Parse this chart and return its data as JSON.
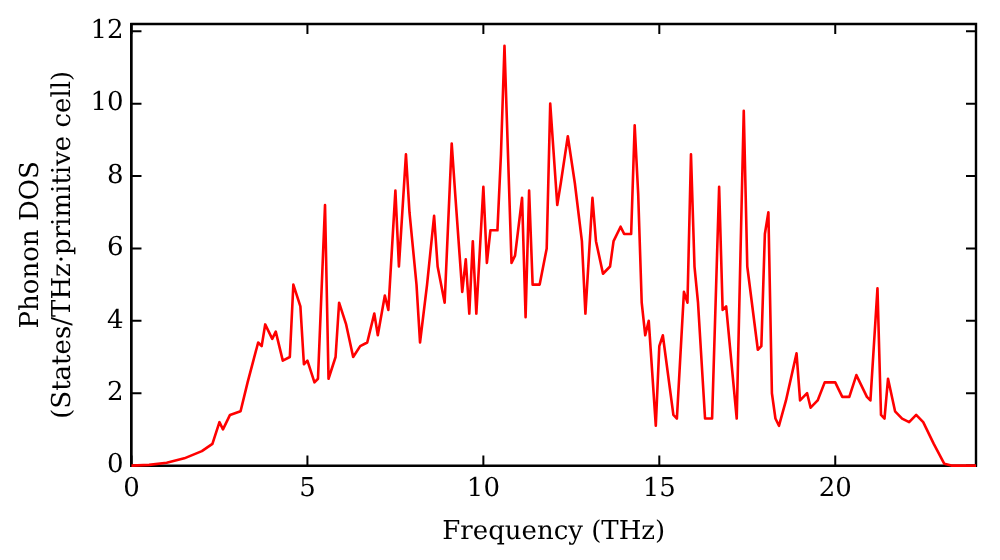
{
  "chart_data": {
    "type": "line",
    "xlabel": "Frequency (THz)",
    "ylabel": "Phonon DOS\n(States/THz·primitive cell)",
    "xlim": [
      0,
      24
    ],
    "xticks": [
      0,
      5,
      10,
      15,
      20
    ],
    "ylim": [
      0,
      12.2
    ],
    "yticks": [
      0,
      2,
      4,
      6,
      8,
      10,
      12
    ],
    "grid": false,
    "legend": false,
    "marker": "none",
    "line_style": "solid",
    "series": [
      {
        "color": "#ff0000",
        "x": [
          0,
          0.5,
          1,
          1.5,
          2,
          2.3,
          2.5,
          2.6,
          2.8,
          3.1,
          3.3,
          3.6,
          3.7,
          3.8,
          4.0,
          4.1,
          4.3,
          4.5,
          4.6,
          4.8,
          4.9,
          5.0,
          5.2,
          5.3,
          5.5,
          5.6,
          5.8,
          5.9,
          6.1,
          6.3,
          6.5,
          6.7,
          6.9,
          7.0,
          7.2,
          7.3,
          7.5,
          7.6,
          7.8,
          7.9,
          8.1,
          8.2,
          8.4,
          8.6,
          8.7,
          8.9,
          9.1,
          9.2,
          9.4,
          9.5,
          9.6,
          9.7,
          9.8,
          10.0,
          10.1,
          10.2,
          10.4,
          10.5,
          10.6,
          10.8,
          10.9,
          11.1,
          11.2,
          11.3,
          11.4,
          11.6,
          11.8,
          11.9,
          12.1,
          12.2,
          12.4,
          12.6,
          12.8,
          12.9,
          13.1,
          13.2,
          13.4,
          13.6,
          13.7,
          13.9,
          14.0,
          14.2,
          14.3,
          14.4,
          14.5,
          14.6,
          14.7,
          14.9,
          15.0,
          15.1,
          15.4,
          15.5,
          15.7,
          15.8,
          15.9,
          16.0,
          16.1,
          16.3,
          16.5,
          16.7,
          16.8,
          16.9,
          17.2,
          17.4,
          17.5,
          17.8,
          17.9,
          18.0,
          18.1,
          18.2,
          18.3,
          18.4,
          18.6,
          18.9,
          19.0,
          19.2,
          19.3,
          19.5,
          19.7,
          20.0,
          20.2,
          20.4,
          20.6,
          20.9,
          21.0,
          21.2,
          21.3,
          21.4,
          21.5,
          21.7,
          21.9,
          22.1,
          22.3,
          22.5,
          22.6,
          22.8,
          23.1,
          23.3,
          24
        ],
        "values": [
          0,
          0.02,
          0.08,
          0.2,
          0.4,
          0.6,
          1.2,
          1.0,
          1.4,
          1.5,
          2.3,
          3.4,
          3.3,
          3.9,
          3.5,
          3.7,
          2.9,
          3.0,
          5.0,
          4.4,
          2.8,
          2.9,
          2.3,
          2.4,
          7.2,
          2.4,
          3.0,
          4.5,
          3.9,
          3.0,
          3.3,
          3.4,
          4.2,
          3.6,
          4.7,
          4.3,
          7.6,
          5.5,
          8.6,
          7.0,
          5.0,
          3.4,
          5.0,
          6.9,
          5.5,
          4.5,
          8.9,
          7.5,
          4.8,
          5.7,
          4.2,
          6.2,
          4.2,
          7.7,
          5.6,
          6.5,
          6.5,
          8.6,
          11.6,
          5.6,
          5.8,
          7.4,
          4.1,
          7.6,
          5.0,
          5.0,
          6.0,
          10.0,
          7.2,
          7.8,
          9.1,
          7.8,
          6.2,
          4.2,
          7.4,
          6.2,
          5.3,
          5.5,
          6.2,
          6.6,
          6.4,
          6.4,
          9.4,
          7.5,
          4.5,
          3.6,
          4.0,
          1.1,
          3.3,
          3.6,
          1.4,
          1.3,
          4.8,
          4.5,
          8.6,
          5.5,
          4.5,
          1.3,
          1.3,
          7.7,
          4.3,
          4.4,
          1.3,
          9.8,
          5.5,
          3.2,
          3.3,
          6.4,
          7.0,
          2.0,
          1.3,
          1.1,
          1.8,
          3.1,
          1.8,
          2.0,
          1.6,
          1.8,
          2.3,
          2.3,
          1.9,
          1.9,
          2.5,
          1.9,
          1.8,
          4.9,
          1.4,
          1.3,
          2.4,
          1.5,
          1.3,
          1.2,
          1.4,
          1.2,
          1.0,
          0.6,
          0.05,
          0,
          0
        ]
      }
    ]
  }
}
